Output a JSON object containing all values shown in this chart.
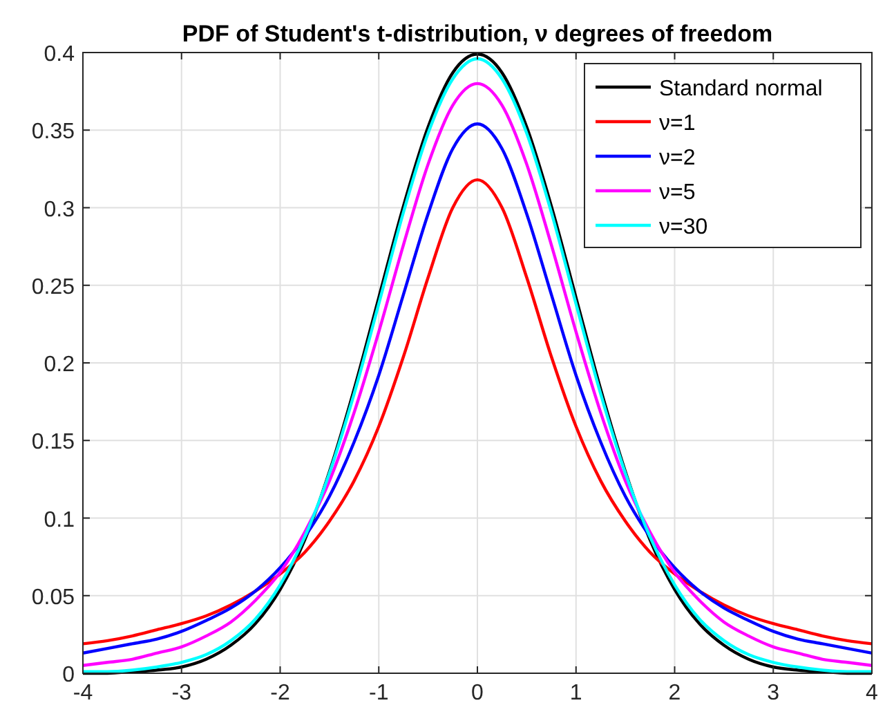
{
  "chart_data": {
    "type": "line",
    "title": "PDF of Student's t-distribution, ν degrees of freedom",
    "x": [
      -4,
      -3.75,
      -3.5,
      -3.25,
      -3,
      -2.75,
      -2.5,
      -2.25,
      -2,
      -1.75,
      -1.5,
      -1.25,
      -1,
      -0.75,
      -0.5,
      -0.25,
      0,
      0.25,
      0.5,
      0.75,
      1,
      1.25,
      1.5,
      1.75,
      2,
      2.25,
      2.5,
      2.75,
      3,
      3.25,
      3.5,
      3.75,
      4
    ],
    "series": [
      {
        "name": "Standard normal",
        "color": "#000000",
        "values": [
          0,
          0,
          0.001,
          0.002,
          0.004,
          0.009,
          0.018,
          0.032,
          0.054,
          0.086,
          0.13,
          0.183,
          0.242,
          0.301,
          0.352,
          0.387,
          0.399,
          0.387,
          0.352,
          0.301,
          0.242,
          0.183,
          0.13,
          0.086,
          0.054,
          0.032,
          0.018,
          0.009,
          0.004,
          0.002,
          0.001,
          0,
          0
        ]
      },
      {
        "name": "ν=1",
        "color": "#ff0000",
        "values": [
          0.019,
          0.021,
          0.024,
          0.028,
          0.032,
          0.037,
          0.044,
          0.053,
          0.064,
          0.078,
          0.098,
          0.124,
          0.159,
          0.204,
          0.255,
          0.3,
          0.318,
          0.3,
          0.255,
          0.204,
          0.159,
          0.124,
          0.098,
          0.078,
          0.064,
          0.053,
          0.044,
          0.037,
          0.032,
          0.028,
          0.024,
          0.021,
          0.019
        ]
      },
      {
        "name": "ν=2",
        "color": "#0000ff",
        "values": [
          0.013,
          0.016,
          0.019,
          0.022,
          0.027,
          0.034,
          0.042,
          0.053,
          0.068,
          0.088,
          0.114,
          0.149,
          0.192,
          0.244,
          0.296,
          0.338,
          0.354,
          0.338,
          0.296,
          0.244,
          0.192,
          0.149,
          0.114,
          0.088,
          0.068,
          0.053,
          0.042,
          0.034,
          0.027,
          0.022,
          0.019,
          0.016,
          0.013
        ]
      },
      {
        "name": "ν=5",
        "color": "#ff00ff",
        "values": [
          0.005,
          0.007,
          0.009,
          0.013,
          0.017,
          0.024,
          0.033,
          0.047,
          0.065,
          0.091,
          0.124,
          0.168,
          0.22,
          0.276,
          0.328,
          0.366,
          0.38,
          0.366,
          0.328,
          0.276,
          0.22,
          0.168,
          0.124,
          0.091,
          0.065,
          0.047,
          0.033,
          0.024,
          0.017,
          0.013,
          0.009,
          0.007,
          0.005
        ]
      },
      {
        "name": "ν=30",
        "color": "#00ffff",
        "values": [
          0.001,
          0.001,
          0.002,
          0.004,
          0.007,
          0.012,
          0.021,
          0.035,
          0.057,
          0.088,
          0.129,
          0.18,
          0.238,
          0.297,
          0.348,
          0.383,
          0.396,
          0.383,
          0.348,
          0.297,
          0.238,
          0.18,
          0.129,
          0.088,
          0.057,
          0.035,
          0.021,
          0.012,
          0.007,
          0.004,
          0.002,
          0.001,
          0.001
        ]
      }
    ],
    "xlim": [
      -4,
      4
    ],
    "xticks": [
      -4,
      -3,
      -2,
      -1,
      0,
      1,
      2,
      3,
      4
    ],
    "ylim": [
      0,
      0.4
    ],
    "yticks": [
      0,
      0.05,
      0.1,
      0.15,
      0.2,
      0.25,
      0.3,
      0.35,
      0.4
    ],
    "grid": true,
    "legend": "top right",
    "marker": "none",
    "line_style": "solid"
  }
}
